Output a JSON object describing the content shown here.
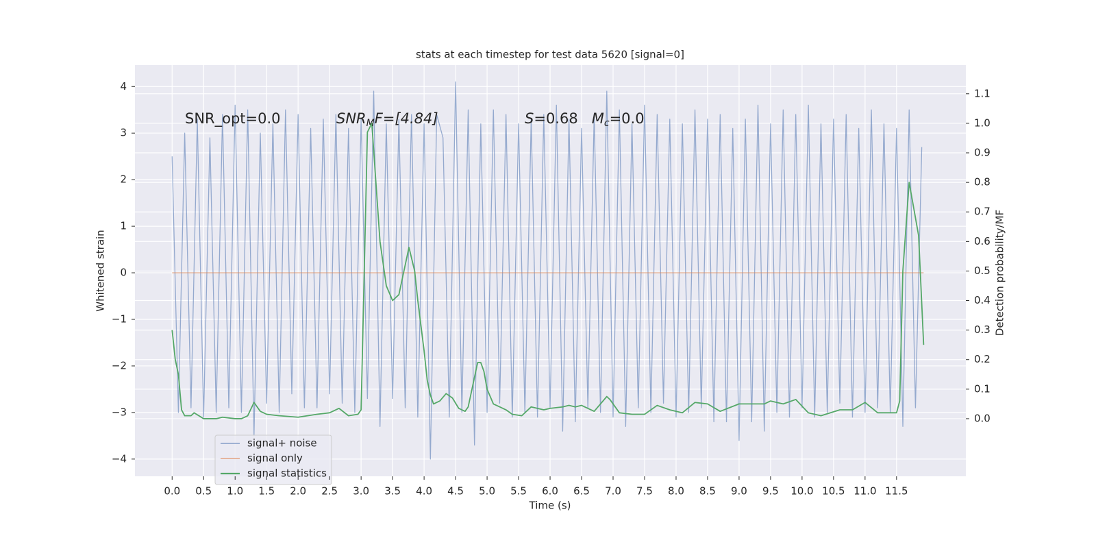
{
  "chart_data": {
    "type": "line",
    "title": "stats at each timestep for test data 5620 [signal=0]",
    "xlabel": "Time (s)",
    "ylabel": "Whitened strain",
    "y2label": "Detection probability/MF",
    "annotations": {
      "snr_opt": "SNR_opt=0.0",
      "snr_mf": [
        "SNR",
        "M",
        "F=[4.84]"
      ],
      "stats": [
        "S",
        "=0.68   ",
        "M",
        "c",
        "=0.0"
      ]
    },
    "xlim": [
      -0.59,
      12.6
    ],
    "ylim": [
      -4.37,
      4.46
    ],
    "y2lim": [
      -0.195,
      1.197
    ],
    "xticks": [
      {
        "value": 0,
        "label": "0.0"
      },
      0.5,
      {
        "value": 1,
        "label": "1.0"
      },
      1.5,
      {
        "value": 2,
        "label": "2.0"
      },
      2.5,
      {
        "value": 3,
        "label": "3.0"
      },
      3.5,
      {
        "value": 4,
        "label": "4.0"
      },
      4.5,
      {
        "value": 5,
        "label": "5.0"
      },
      5.5,
      {
        "value": 6,
        "label": "6.0"
      },
      6.5,
      {
        "value": 7,
        "label": "7.0"
      },
      7.5,
      {
        "value": 8,
        "label": "8.0"
      },
      8.5,
      {
        "value": 9,
        "label": "9.0"
      },
      9.5,
      {
        "value": 10,
        "label": "10.0"
      },
      10.5,
      {
        "value": 11,
        "label": "11.0"
      },
      11.5
    ],
    "yticks": [
      {
        "value": -4,
        "label": "−4"
      },
      {
        "value": -3,
        "label": "−3"
      },
      {
        "value": -2,
        "label": "−2"
      },
      {
        "value": -1,
        "label": "−1"
      },
      0,
      1,
      2,
      3,
      4
    ],
    "y2ticks": [
      {
        "value": 0,
        "label": "0.0"
      },
      0.1,
      0.2,
      0.3,
      0.4,
      0.5,
      0.6,
      0.7,
      0.8,
      0.9,
      {
        "value": 1,
        "label": "1.0"
      },
      1.1
    ],
    "grid": true,
    "legend": "lower left",
    "series": [
      {
        "name": "signal+ noise",
        "color": "#4c72b0",
        "x": [
          0,
          0.1,
          0.2,
          0.3,
          0.4,
          0.5,
          0.6,
          0.7,
          0.8,
          0.9,
          1,
          1.1,
          1.2,
          1.3,
          1.4,
          1.5,
          1.6,
          1.7,
          1.8,
          1.9,
          2,
          2.1,
          2.2,
          2.3,
          2.4,
          2.5,
          2.6,
          2.7,
          2.8,
          2.9,
          3,
          3.1,
          3.2,
          3.3,
          3.4,
          3.5,
          3.6,
          3.7,
          3.8,
          3.9,
          4,
          4.1,
          4.2,
          4.3,
          4.4,
          4.5,
          4.6,
          4.7,
          4.8,
          4.9,
          5,
          5.1,
          5.2,
          5.3,
          5.4,
          5.5,
          5.6,
          5.7,
          5.8,
          5.9,
          6,
          6.1,
          6.2,
          6.3,
          6.4,
          6.5,
          6.6,
          6.7,
          6.8,
          6.9,
          7,
          7.1,
          7.2,
          7.3,
          7.4,
          7.5,
          7.6,
          7.7,
          7.8,
          7.9,
          8,
          8.1,
          8.2,
          8.3,
          8.4,
          8.5,
          8.6,
          8.7,
          8.8,
          8.9,
          9,
          9.1,
          9.2,
          9.3,
          9.4,
          9.5,
          9.6,
          9.7,
          9.8,
          9.9,
          10,
          10.1,
          10.2,
          10.3,
          10.4,
          10.5,
          10.6,
          10.7,
          10.8,
          10.9,
          11,
          11.1,
          11.2,
          11.3,
          11.4,
          11.5,
          11.6,
          11.7,
          11.8,
          11.9
        ],
        "values": [
          2.5,
          -3.0,
          3.0,
          -2.9,
          3.3,
          -3.1,
          2.9,
          -3.0,
          3.4,
          -2.9,
          3.6,
          -3.0,
          3.5,
          -3.5,
          3.0,
          -2.8,
          3.2,
          -3.0,
          3.5,
          -2.6,
          3.4,
          -2.9,
          3.1,
          -2.9,
          3.3,
          -2.6,
          3.4,
          -2.8,
          3.1,
          -3.0,
          3.3,
          -2.7,
          3.9,
          -3.3,
          3.2,
          -2.7,
          3.3,
          -2.9,
          3.4,
          -3.1,
          3.2,
          -4.0,
          3.4,
          2.9,
          -3.1,
          4.1,
          -3.0,
          3.5,
          -3.7,
          3.2,
          -3.0,
          3.5,
          -2.8,
          3.4,
          -3.1,
          3.2,
          -3.0,
          3.3,
          -3.1,
          3.4,
          -2.9,
          3.6,
          -3.4,
          3.3,
          -3.2,
          3.1,
          -2.9,
          3.4,
          -3.0,
          3.9,
          -3.1,
          3.5,
          -3.3,
          3.2,
          -2.9,
          3.6,
          -3.0,
          3.4,
          -2.8,
          3.3,
          -3.1,
          3.2,
          -3.0,
          3.5,
          -2.9,
          3.3,
          -3.2,
          3.4,
          -3.2,
          3.1,
          -3.6,
          3.3,
          -3.2,
          3.6,
          -3.4,
          3.2,
          -3.0,
          3.5,
          -3.1,
          3.4,
          -2.9,
          3.6,
          -3.1,
          3.2,
          -3.0,
          3.3,
          -2.8,
          3.4,
          -3.1,
          3.1,
          -3.0,
          3.5,
          -2.9,
          3.2,
          -3.0,
          3.1,
          -3.3,
          3.5,
          -2.9,
          2.7
        ]
      },
      {
        "name": "signal only",
        "color": "#dd8452",
        "x": [
          0,
          11.93
        ],
        "values": [
          0,
          0
        ]
      },
      {
        "name": "signal statistics",
        "color": "#55a868",
        "axis": "y2",
        "x": [
          0,
          0.05,
          0.1,
          0.15,
          0.2,
          0.3,
          0.35,
          0.5,
          0.7,
          0.8,
          1.0,
          1.1,
          1.2,
          1.3,
          1.4,
          1.5,
          1.7,
          2.0,
          2.3,
          2.5,
          2.65,
          2.8,
          2.95,
          3.0,
          3.1,
          3.17,
          3.3,
          3.4,
          3.5,
          3.6,
          3.7,
          3.76,
          3.85,
          3.9,
          4.0,
          4.05,
          4.1,
          4.15,
          4.25,
          4.35,
          4.45,
          4.55,
          4.65,
          4.7,
          4.75,
          4.85,
          4.9,
          4.95,
          5.0,
          5.1,
          5.2,
          5.3,
          5.4,
          5.55,
          5.7,
          5.9,
          6.0,
          6.2,
          6.3,
          6.4,
          6.5,
          6.7,
          6.9,
          6.95,
          7.1,
          7.3,
          7.5,
          7.7,
          7.9,
          8.1,
          8.3,
          8.5,
          8.7,
          9.0,
          9.2,
          9.4,
          9.5,
          9.7,
          9.9,
          10.1,
          10.3,
          10.6,
          10.8,
          11.0,
          11.2,
          11.4,
          11.5,
          11.55,
          11.6,
          11.7,
          11.85,
          11.93
        ],
        "values": [
          0.3,
          0.2,
          0.15,
          0.03,
          0.01,
          0.01,
          0.02,
          0.0,
          0.0,
          0.005,
          0.0,
          0.0,
          0.01,
          0.055,
          0.025,
          0.015,
          0.01,
          0.005,
          0.015,
          0.02,
          0.035,
          0.01,
          0.015,
          0.03,
          0.97,
          1.0,
          0.6,
          0.45,
          0.4,
          0.42,
          0.52,
          0.58,
          0.5,
          0.4,
          0.23,
          0.13,
          0.08,
          0.05,
          0.06,
          0.085,
          0.07,
          0.035,
          0.025,
          0.04,
          0.09,
          0.19,
          0.19,
          0.16,
          0.1,
          0.05,
          0.04,
          0.03,
          0.015,
          0.01,
          0.04,
          0.03,
          0.035,
          0.04,
          0.045,
          0.04,
          0.045,
          0.025,
          0.075,
          0.065,
          0.02,
          0.015,
          0.015,
          0.045,
          0.03,
          0.02,
          0.055,
          0.05,
          0.025,
          0.05,
          0.05,
          0.05,
          0.06,
          0.05,
          0.065,
          0.02,
          0.01,
          0.03,
          0.03,
          0.055,
          0.02,
          0.02,
          0.02,
          0.06,
          0.5,
          0.8,
          0.62,
          0.25
        ]
      }
    ]
  }
}
